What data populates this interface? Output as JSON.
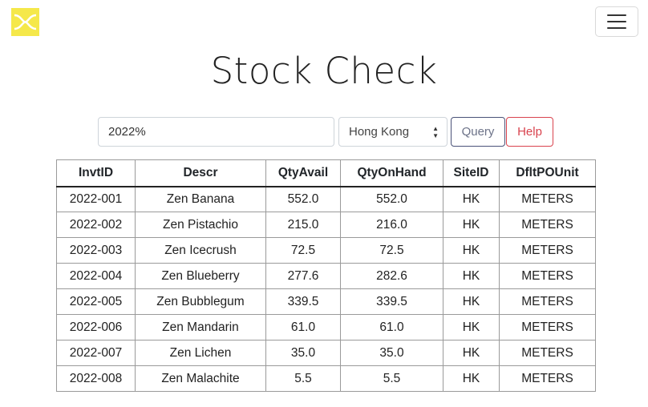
{
  "page": {
    "title": "Stock Check"
  },
  "search": {
    "value": "2022%"
  },
  "site_select": {
    "selected": "Hong Kong"
  },
  "buttons": {
    "query": "Query",
    "help": "Help"
  },
  "table": {
    "columns": [
      "InvtID",
      "Descr",
      "QtyAvail",
      "QtyOnHand",
      "SiteID",
      "DfltPOUnit"
    ],
    "rows": [
      [
        "2022-001",
        "Zen Banana",
        "552.0",
        "552.0",
        "HK",
        "METERS"
      ],
      [
        "2022-002",
        "Zen Pistachio",
        "215.0",
        "216.0",
        "HK",
        "METERS"
      ],
      [
        "2022-003",
        "Zen Icecrush",
        "72.5",
        "72.5",
        "HK",
        "METERS"
      ],
      [
        "2022-004",
        "Zen Blueberry",
        "277.6",
        "282.6",
        "HK",
        "METERS"
      ],
      [
        "2022-005",
        "Zen Bubblegum",
        "339.5",
        "339.5",
        "HK",
        "METERS"
      ],
      [
        "2022-006",
        "Zen Mandarin",
        "61.0",
        "61.0",
        "HK",
        "METERS"
      ],
      [
        "2022-007",
        "Zen Lichen",
        "35.0",
        "35.0",
        "HK",
        "METERS"
      ],
      [
        "2022-008",
        "Zen Malachite",
        "5.5",
        "5.5",
        "HK",
        "METERS"
      ]
    ]
  },
  "colors": {
    "logo_bg": "#f5e84a",
    "help": "#d9434e",
    "query_border": "#4a5278"
  },
  "icons": {
    "logo": "brand-logo-icon",
    "menu": "hamburger-menu-icon",
    "select_caret": "updown-caret-icon"
  }
}
